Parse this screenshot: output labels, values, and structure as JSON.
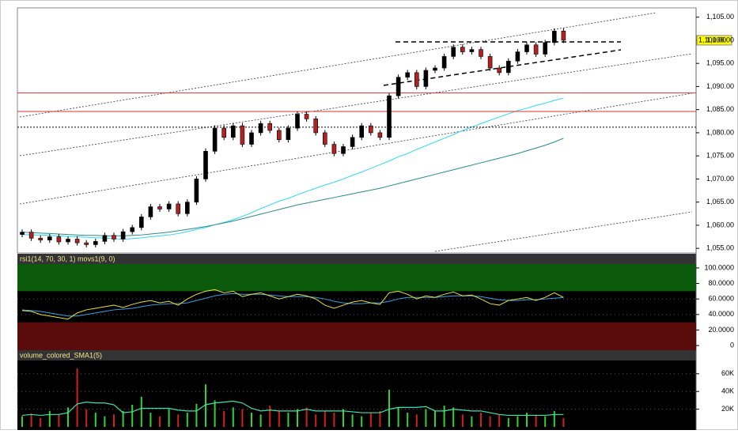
{
  "chart_data": [
    {
      "type": "candlestick",
      "open": [
        1058.0,
        1058.5,
        1057.2,
        1056.8,
        1057.5,
        1056.4,
        1057.0,
        1056.2,
        1055.8,
        1056.5,
        1057.8,
        1057.0,
        1058.6,
        1059.5,
        1061.8,
        1064.0,
        1063.5,
        1064.6,
        1062.5,
        1065.0,
        1070.0,
        1076.0,
        1081.0,
        1079.0,
        1081.5,
        1077.5,
        1080.0,
        1082.0,
        1080.5,
        1078.5,
        1081.0,
        1084.0,
        1083.0,
        1080.0,
        1077.5,
        1075.5,
        1077.0,
        1079.0,
        1081.5,
        1080.0,
        1079.0,
        1088.0,
        1092.0,
        1093.0,
        1090.0,
        1093.5,
        1094.0,
        1096.5,
        1098.5,
        1097.5,
        1098.0,
        1096.5,
        1094.0,
        1093.0,
        1095.5,
        1097.5,
        1099.0,
        1097.0,
        1099.5,
        1102.0
      ],
      "high": [
        1059.1,
        1059.1,
        1057.8,
        1058.1,
        1058.1,
        1057.6,
        1057.6,
        1056.8,
        1057.1,
        1058.4,
        1058.4,
        1059.2,
        1060.1,
        1062.4,
        1064.6,
        1064.6,
        1065.2,
        1065.2,
        1065.6,
        1070.6,
        1076.6,
        1081.6,
        1081.6,
        1082.1,
        1082.1,
        1080.6,
        1082.6,
        1082.6,
        1081.1,
        1081.6,
        1084.6,
        1084.6,
        1083.6,
        1080.6,
        1078.1,
        1077.6,
        1079.6,
        1082.1,
        1082.1,
        1080.6,
        1088.6,
        1092.6,
        1093.6,
        1093.6,
        1094.1,
        1094.6,
        1097.1,
        1099.1,
        1099.1,
        1098.6,
        1098.6,
        1097.1,
        1094.6,
        1096.1,
        1098.1,
        1099.6,
        1099.6,
        1100.1,
        1102.6,
        1102.6
      ],
      "low": [
        1057.4,
        1056.6,
        1056.2,
        1056.2,
        1055.8,
        1055.8,
        1055.6,
        1055.2,
        1055.2,
        1055.9,
        1056.4,
        1056.4,
        1058.0,
        1058.9,
        1061.2,
        1062.9,
        1062.9,
        1061.9,
        1061.9,
        1064.4,
        1069.4,
        1075.4,
        1078.4,
        1078.4,
        1076.9,
        1076.9,
        1079.4,
        1079.9,
        1077.9,
        1077.9,
        1080.4,
        1082.4,
        1079.4,
        1076.9,
        1074.9,
        1074.9,
        1076.4,
        1078.4,
        1079.4,
        1078.4,
        1078.4,
        1087.4,
        1091.4,
        1089.4,
        1089.4,
        1092.9,
        1093.4,
        1095.9,
        1096.9,
        1096.9,
        1095.9,
        1093.4,
        1092.4,
        1092.4,
        1094.9,
        1096.9,
        1096.4,
        1096.4,
        1098.9,
        1099.4
      ],
      "close": [
        1058.5,
        1057.2,
        1056.8,
        1057.5,
        1056.4,
        1057.0,
        1056.2,
        1055.8,
        1056.5,
        1057.8,
        1057.0,
        1058.6,
        1059.5,
        1061.8,
        1064.0,
        1063.5,
        1064.6,
        1062.5,
        1065.0,
        1070.0,
        1076.0,
        1081.0,
        1079.0,
        1081.5,
        1077.5,
        1080.0,
        1082.0,
        1080.5,
        1078.5,
        1081.0,
        1084.0,
        1083.0,
        1080.0,
        1077.5,
        1075.5,
        1077.0,
        1079.0,
        1081.5,
        1080.0,
        1079.0,
        1088.0,
        1092.0,
        1093.0,
        1090.0,
        1093.5,
        1094.0,
        1096.5,
        1098.5,
        1097.5,
        1098.0,
        1096.5,
        1094.0,
        1093.0,
        1095.5,
        1097.5,
        1099.0,
        1097.0,
        1099.5,
        1102.0,
        1100.0
      ],
      "up_color": "#000000",
      "down_color": "#b22222",
      "overlays": [
        {
          "color": "#30d8f0",
          "values": [
            1058.0,
            1057.9,
            1057.9,
            1057.8,
            1057.7,
            1057.6,
            1057.5,
            1057.4,
            1057.3,
            1057.2,
            1057.1,
            1057.0,
            1057.1,
            1057.3,
            1057.5,
            1057.7,
            1057.9,
            1058.2,
            1058.6,
            1059.1,
            1059.5,
            1060.1,
            1060.6,
            1061.2,
            1061.9,
            1062.7,
            1063.6,
            1064.4,
            1065.2,
            1065.8,
            1066.6,
            1067.3,
            1068.0,
            1068.7,
            1069.3,
            1070.0,
            1070.8,
            1071.5,
            1072.3,
            1073.1,
            1073.9,
            1074.8,
            1075.5,
            1076.4,
            1077.2,
            1078.0,
            1078.8,
            1079.6,
            1080.5,
            1081.2,
            1082.0,
            1082.7,
            1083.4,
            1084.1,
            1084.8,
            1085.3,
            1085.9,
            1086.4,
            1087.0,
            1087.5
          ]
        },
        {
          "color": "#2a8a8a",
          "values": [
            1058.5,
            1058.4,
            1058.3,
            1058.2,
            1058.1,
            1058.0,
            1057.9,
            1057.8,
            1057.8,
            1057.7,
            1057.7,
            1057.7,
            1057.8,
            1057.9,
            1058.1,
            1058.3,
            1058.5,
            1058.8,
            1059.1,
            1059.4,
            1059.7,
            1060.1,
            1060.5,
            1060.9,
            1061.4,
            1061.9,
            1062.4,
            1062.9,
            1063.4,
            1063.9,
            1064.4,
            1064.8,
            1065.2,
            1065.6,
            1066.0,
            1066.4,
            1066.8,
            1067.2,
            1067.6,
            1068.0,
            1068.5,
            1069.0,
            1069.5,
            1070.0,
            1070.5,
            1071.0,
            1071.5,
            1072.0,
            1072.5,
            1073.0,
            1073.5,
            1074.0,
            1074.5,
            1075.0,
            1075.5,
            1076.1,
            1076.7,
            1077.3,
            1078.0,
            1078.8
          ]
        }
      ],
      "hlines": [
        {
          "value": 1088.6,
          "color": "#e03030"
        },
        {
          "value": 1084.6,
          "color": "#e03030"
        },
        {
          "value": 1081.2,
          "color": "#000000"
        }
      ],
      "last_price": {
        "value": 1100,
        "label": "1,100.00"
      },
      "ylim": [
        1054,
        1107
      ],
      "yticks": [
        {
          "value": 1055,
          "label": "1,055.00"
        },
        {
          "value": 1060,
          "label": "1,060.00"
        },
        {
          "value": 1065,
          "label": "1,065.00"
        },
        {
          "value": 1070,
          "label": "1,070.00"
        },
        {
          "value": 1075,
          "label": "1,075.00"
        },
        {
          "value": 1080,
          "label": "1,080.00"
        },
        {
          "value": 1085,
          "label": "1,085.00"
        },
        {
          "value": 1090,
          "label": "1,090.00"
        },
        {
          "value": 1095,
          "label": "1,095.00"
        },
        {
          "value": 1100,
          "label": "1,100.00"
        },
        {
          "value": 1105,
          "label": "1,105.00"
        }
      ],
      "grid": false
    },
    {
      "type": "line",
      "title": "rsi1(14, 70, 30, 1) movs1(9, 0)",
      "series": [
        {
          "color": "#e8e040",
          "values": [
            45,
            44,
            40,
            38,
            36,
            34,
            42,
            46,
            48,
            50,
            52,
            49,
            53,
            56,
            58,
            55,
            57,
            52,
            60,
            66,
            70,
            72,
            68,
            70,
            63,
            66,
            68,
            64,
            60,
            63,
            66,
            64,
            60,
            52,
            48,
            52,
            56,
            58,
            55,
            53,
            68,
            70,
            66,
            60,
            64,
            62,
            66,
            69,
            64,
            65,
            60,
            54,
            52,
            58,
            60,
            62,
            58,
            62,
            68,
            62
          ]
        },
        {
          "color": "#3aa0e0",
          "values": [
            46,
            45,
            44,
            42,
            40,
            38,
            38,
            40,
            42,
            44,
            46,
            47,
            48,
            50,
            52,
            53,
            54,
            54,
            55,
            58,
            61,
            64,
            66,
            67,
            66,
            66,
            66,
            65,
            64,
            63,
            63,
            63,
            62,
            60,
            57,
            55,
            54,
            54,
            55,
            55,
            57,
            60,
            62,
            62,
            62,
            62,
            63,
            64,
            64,
            64,
            63,
            61,
            59,
            58,
            58,
            59,
            59,
            60,
            61,
            62
          ]
        }
      ],
      "zones": [
        {
          "from": 70,
          "to": 105,
          "color": "#0b5a0b"
        },
        {
          "from": -6,
          "to": 30,
          "color": "#5a0b0b"
        }
      ],
      "ylim": [
        -6,
        105
      ],
      "yticks": [
        0,
        {
          "value": 20,
          "label": "20.0000"
        },
        {
          "value": 40,
          "label": "40.0000"
        },
        {
          "value": 60,
          "label": "60.0000"
        },
        {
          "value": 80,
          "label": "80.0000"
        },
        {
          "value": 100,
          "label": "100.0000"
        }
      ],
      "grid": true
    },
    {
      "type": "bar",
      "title": "volume_colored_SMA1(5)",
      "values": [
        12000,
        15000,
        10000,
        18000,
        14000,
        22000,
        66000,
        20000,
        16000,
        12000,
        14000,
        18000,
        25000,
        34000,
        16000,
        12000,
        20000,
        14000,
        16000,
        26000,
        48000,
        30000,
        18000,
        22000,
        20000,
        16000,
        14000,
        24000,
        18000,
        16000,
        20000,
        22000,
        14000,
        18000,
        16000,
        20000,
        14000,
        12000,
        16000,
        18000,
        42000,
        22000,
        16000,
        14000,
        20000,
        18000,
        24000,
        22000,
        14000,
        12000,
        16000,
        12000,
        14000,
        10000,
        12000,
        16000,
        14000,
        12000,
        18000,
        10000
      ],
      "up_color": "#32d232",
      "down_color": "#d02020",
      "sma": {
        "color": "#40e0b0",
        "values": [
          13000,
          14000,
          13000,
          14000,
          14000,
          16000,
          26000,
          28000,
          27000,
          27000,
          25000,
          16000,
          17000,
          21000,
          21000,
          21000,
          21000,
          19000,
          18000,
          18000,
          25000,
          27000,
          28000,
          29000,
          27000,
          21000,
          18000,
          19000,
          18000,
          18000,
          18000,
          20000,
          18000,
          18000,
          18000,
          18000,
          17000,
          16000,
          16000,
          16000,
          20000,
          22000,
          22000,
          22000,
          23000,
          18000,
          18000,
          20000,
          19000,
          18000,
          18000,
          16000,
          14000,
          13000,
          13000,
          13000,
          13000,
          13000,
          14000,
          14000
        ]
      },
      "ylim": [
        0,
        75000
      ],
      "yticks": [
        {
          "value": 20000,
          "label": "20K"
        },
        {
          "value": 40000,
          "label": "40K"
        },
        {
          "value": 60000,
          "label": "60K"
        }
      ],
      "grid": true
    }
  ]
}
